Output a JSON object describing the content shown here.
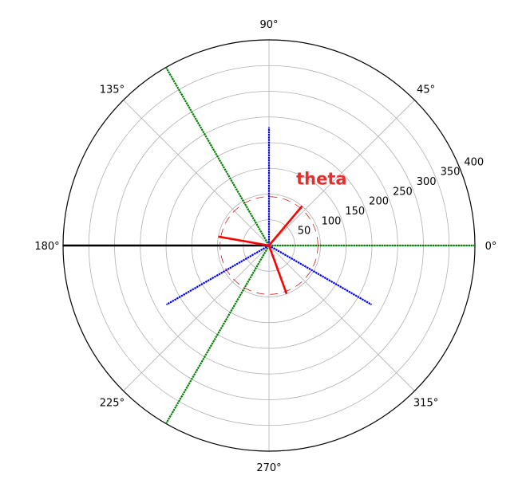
{
  "chart_data": {
    "type": "polar",
    "title": "",
    "r_max": 400,
    "r_ticks": [
      50,
      100,
      150,
      200,
      250,
      300,
      350,
      400
    ],
    "theta_ticks": [
      {
        "deg": 0,
        "label": "0°"
      },
      {
        "deg": 45,
        "label": "45°"
      },
      {
        "deg": 90,
        "label": "90°"
      },
      {
        "deg": 135,
        "label": "135°"
      },
      {
        "deg": 180,
        "label": "180°"
      },
      {
        "deg": 225,
        "label": "225°"
      },
      {
        "deg": 270,
        "label": "270°"
      },
      {
        "deg": 315,
        "label": "315°"
      }
    ],
    "grid": true,
    "series": [
      {
        "color": "#000000",
        "style": "solid",
        "rays": [
          {
            "theta": 180,
            "r": 400
          }
        ]
      },
      {
        "color": "#008000",
        "style": "dotted-markers",
        "rays": [
          {
            "theta": 0,
            "r": 400
          },
          {
            "theta": 120,
            "r": 400
          },
          {
            "theta": 240,
            "r": 400
          }
        ]
      },
      {
        "color": "#0000ff",
        "style": "dotted-markers",
        "rays": [
          {
            "theta": 90,
            "r": 230
          },
          {
            "theta": 210,
            "r": 230
          },
          {
            "theta": 330,
            "r": 230
          }
        ]
      },
      {
        "color": "#ff0000",
        "style": "solid",
        "rays": [
          {
            "theta": 50,
            "r": 100
          },
          {
            "theta": 170,
            "r": 100
          },
          {
            "theta": 290,
            "r": 100
          }
        ]
      }
    ],
    "arc": {
      "color": "#cc0000",
      "radius": 95,
      "dash_on": 10,
      "dash_off": 7
    },
    "annotation": {
      "text": "theta",
      "theta": 66,
      "r": 130,
      "color": "#e03030"
    }
  }
}
